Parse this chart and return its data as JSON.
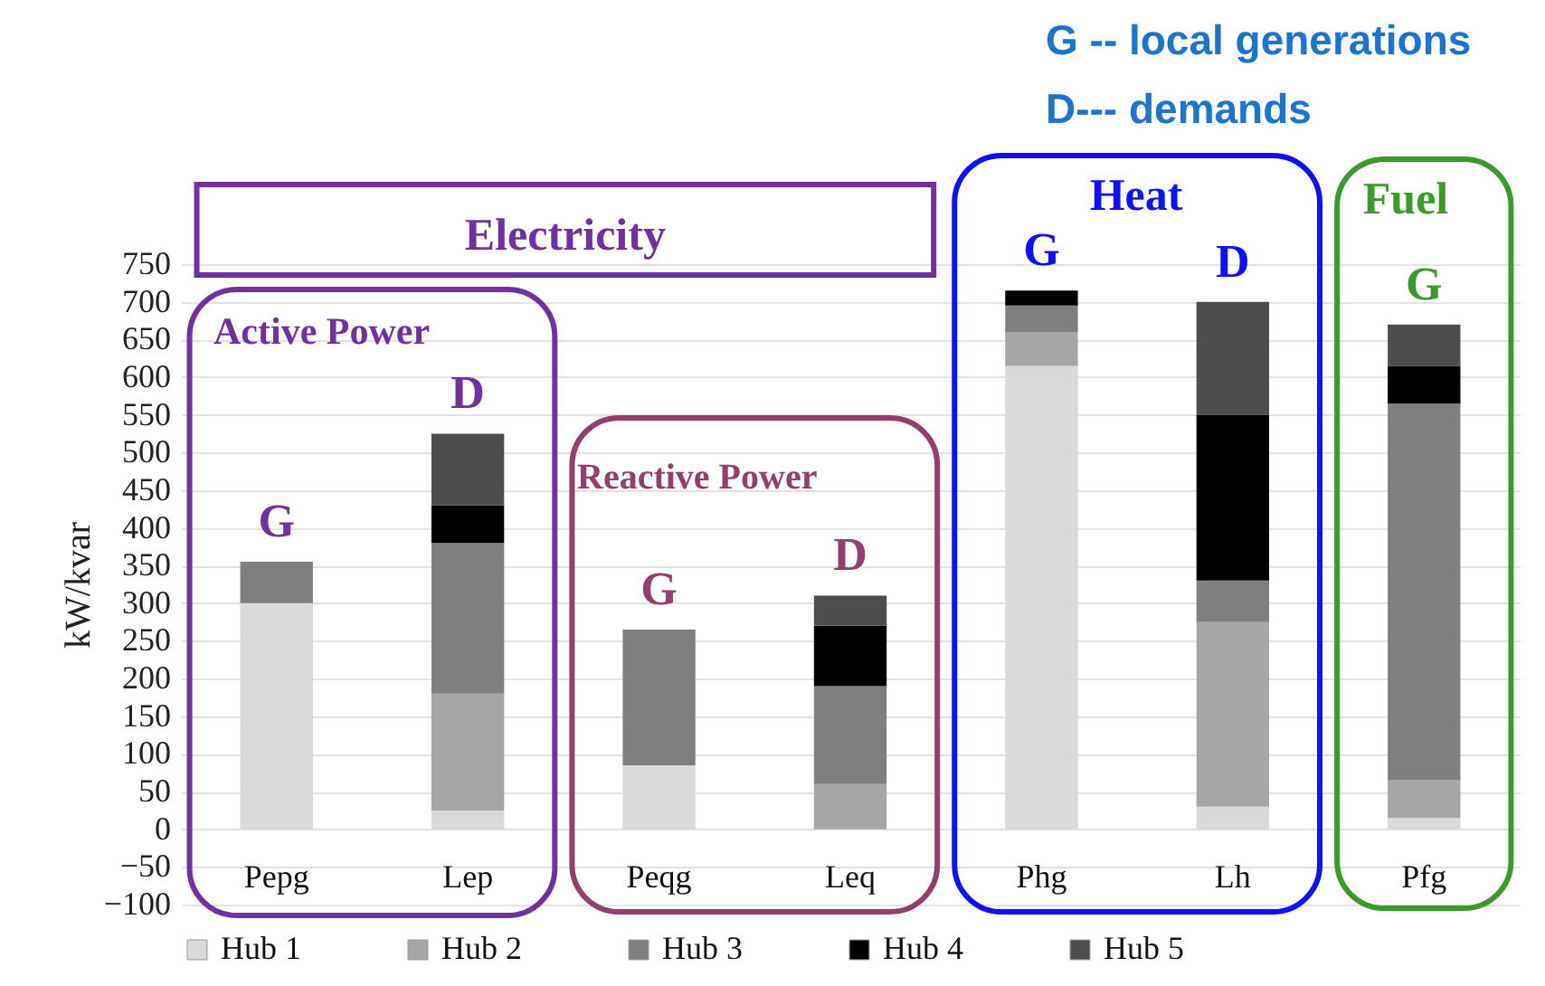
{
  "chart_data": {
    "type": "bar",
    "stacked": true,
    "ylabel": "kW/kvar",
    "categories": [
      "Pepg",
      "Lep",
      "Peqg",
      "Leq",
      "Phg",
      "Lh",
      "Pfg"
    ],
    "series": [
      {
        "name": "Hub 1",
        "color": "#d9d9d9",
        "values": [
          300,
          25,
          85,
          0,
          615,
          30,
          15
        ]
      },
      {
        "name": "Hub 2",
        "color": "#a6a6a6",
        "values": [
          0,
          155,
          0,
          60,
          45,
          245,
          50
        ]
      },
      {
        "name": "Hub 3",
        "color": "#7f7f7f",
        "values": [
          55,
          200,
          180,
          130,
          35,
          55,
          500
        ]
      },
      {
        "name": "Hub 4",
        "color": "#000000",
        "values": [
          0,
          50,
          0,
          80,
          20,
          220,
          50
        ]
      },
      {
        "name": "Hub 5",
        "color": "#4d4d4d",
        "values": [
          0,
          95,
          0,
          40,
          0,
          150,
          55
        ]
      }
    ],
    "ylim": [
      -100,
      750
    ],
    "yticks": [
      -100,
      -50,
      0,
      50,
      100,
      150,
      200,
      250,
      300,
      350,
      400,
      450,
      500,
      550,
      600,
      650,
      700,
      750
    ],
    "grid": "y",
    "legend": "bottom",
    "annotations": [
      "G -- local  generations",
      "D--- demands",
      "Electricity",
      "Active Power",
      "Reactive Power",
      "Heat",
      "Fuel",
      {
        "text": "G",
        "x": "Pepg",
        "y": 355
      },
      {
        "text": "D",
        "x": "Lep",
        "y": 525
      },
      {
        "text": "G",
        "x": "Peqg",
        "y": 265
      },
      {
        "text": "D",
        "x": "Leq",
        "y": 310
      },
      {
        "text": "G",
        "x": "Phg",
        "y": 715
      },
      {
        "text": "D",
        "x": "Lh",
        "y": 700
      },
      {
        "text": "G",
        "x": "Pfg",
        "y": 670
      }
    ]
  }
}
